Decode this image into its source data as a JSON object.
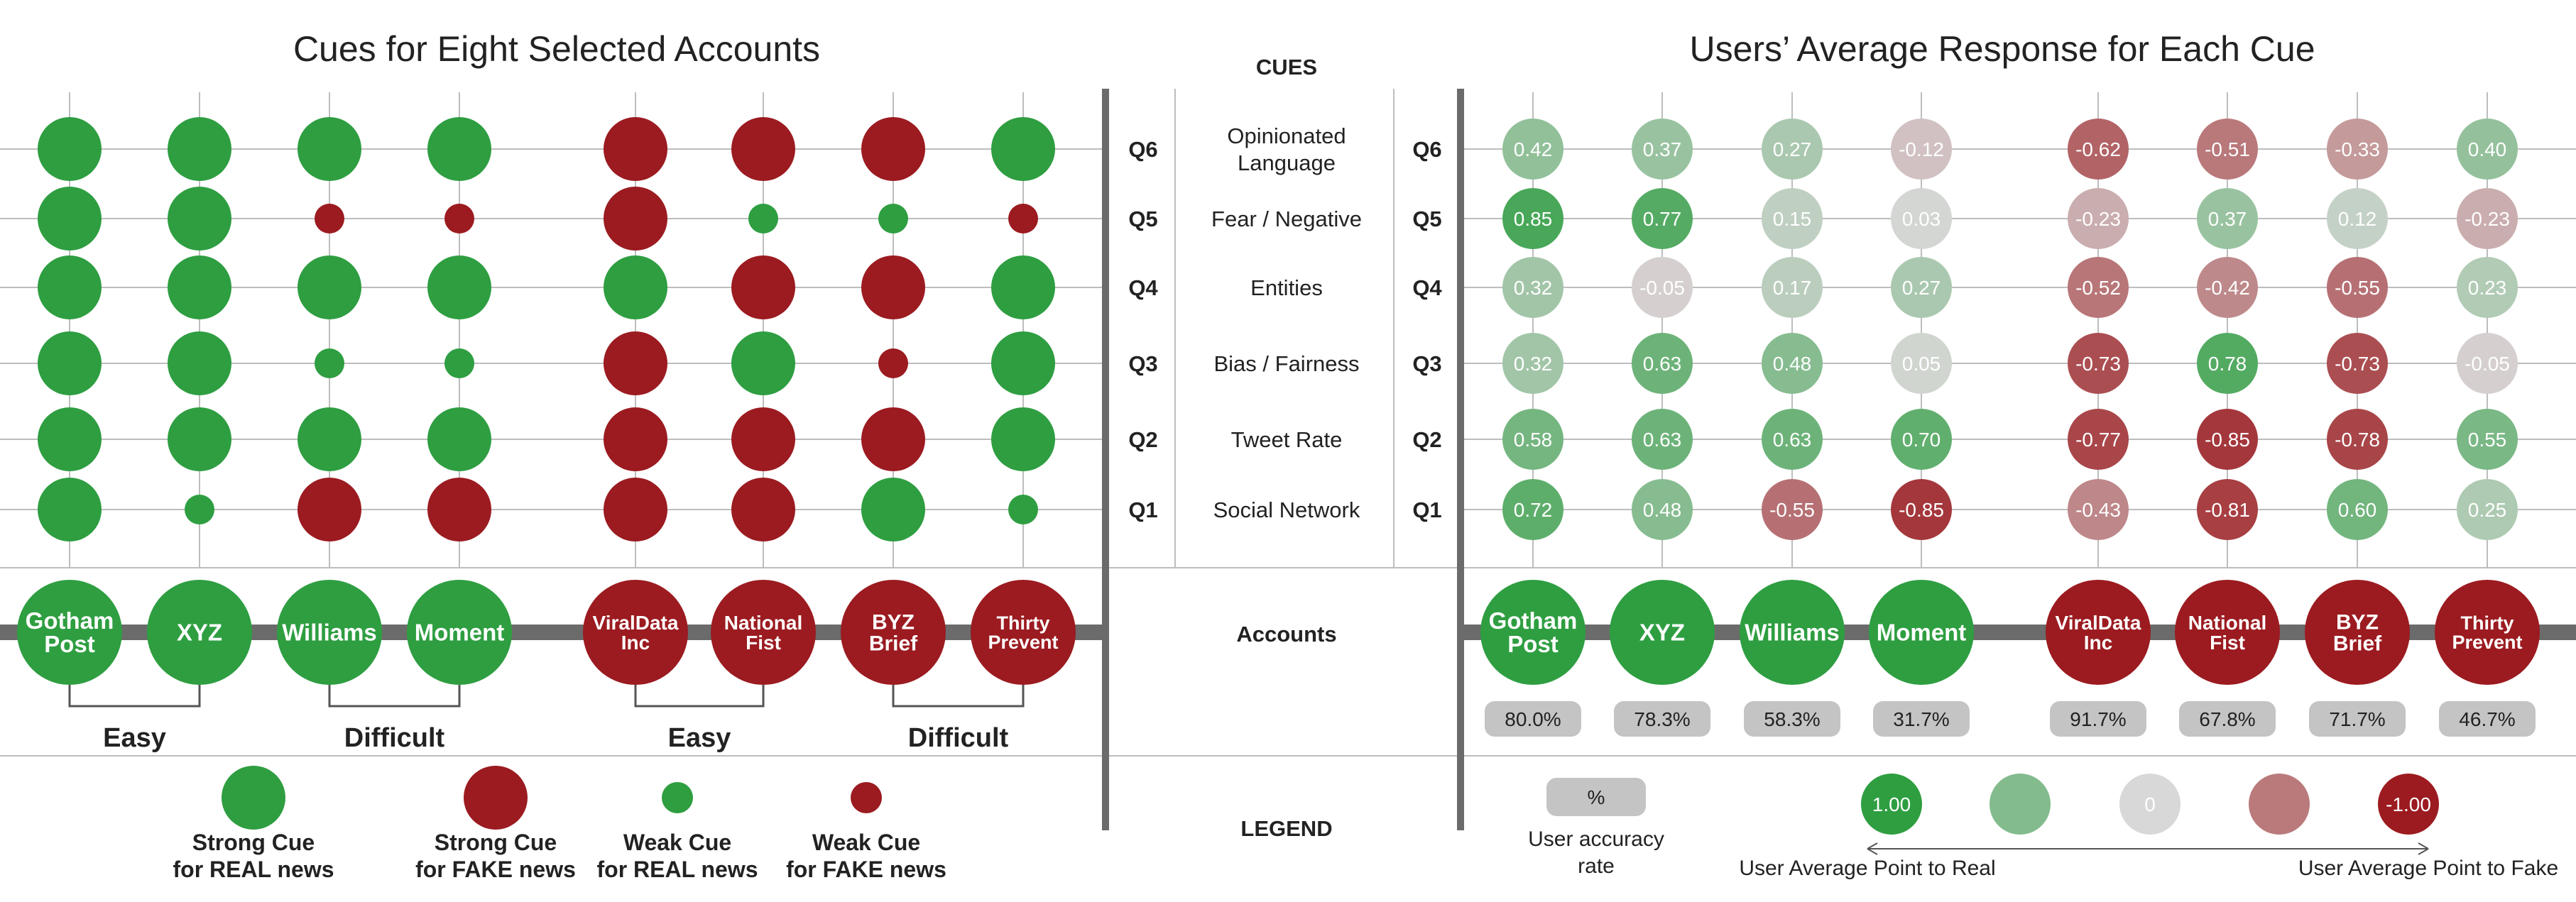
{
  "titles": {
    "left": "Cues for Eight Selected Accounts",
    "right": "Users’ Average Response for Each Cue"
  },
  "headers": {
    "cues": "CUES",
    "accounts": "Accounts",
    "legend": "LEGEND"
  },
  "chart_data": [
    {
      "type": "scatter",
      "title": "Cues for Eight Selected Accounts",
      "rows": [
        "Q6",
        "Q5",
        "Q4",
        "Q3",
        "Q2",
        "Q1"
      ],
      "accounts": [
        {
          "lines": [
            "Gotham",
            "Post"
          ],
          "label": "Gotham Post",
          "type": "real"
        },
        {
          "lines": [
            "XYZ"
          ],
          "label": "XYZ",
          "type": "real"
        },
        {
          "lines": [
            "Williams"
          ],
          "label": "Williams",
          "type": "real"
        },
        {
          "lines": [
            "Moment"
          ],
          "label": "Moment",
          "type": "real"
        },
        {
          "lines": [
            "ViralData",
            "Inc"
          ],
          "label": "ViralData Inc",
          "type": "fake"
        },
        {
          "lines": [
            "National",
            "Fist"
          ],
          "label": "National Fist",
          "type": "fake"
        },
        {
          "lines": [
            "BYZ",
            "Brief"
          ],
          "label": "BYZ Brief",
          "type": "fake"
        },
        {
          "lines": [
            "Thirty",
            "Prevent"
          ],
          "label": "Thirty Prevent",
          "type": "fake"
        }
      ],
      "cue_values": {
        "Q6": [
          "strong_real",
          "strong_real",
          "strong_real",
          "strong_real",
          "strong_fake",
          "strong_fake",
          "strong_fake",
          "strong_real"
        ],
        "Q5": [
          "strong_real",
          "strong_real",
          "weak_fake",
          "weak_fake",
          "strong_fake",
          "weak_real",
          "weak_real",
          "weak_fake"
        ],
        "Q4": [
          "strong_real",
          "strong_real",
          "strong_real",
          "strong_real",
          "strong_real",
          "strong_fake",
          "strong_fake",
          "strong_real"
        ],
        "Q3": [
          "strong_real",
          "strong_real",
          "weak_real",
          "weak_real",
          "strong_fake",
          "strong_real",
          "weak_fake",
          "strong_real"
        ],
        "Q2": [
          "strong_real",
          "strong_real",
          "strong_real",
          "strong_real",
          "strong_fake",
          "strong_fake",
          "strong_fake",
          "strong_real"
        ],
        "Q1": [
          "strong_real",
          "weak_real",
          "strong_fake",
          "strong_fake",
          "strong_fake",
          "strong_fake",
          "strong_real",
          "weak_real"
        ]
      },
      "groups": [
        {
          "label": "Easy",
          "accounts": [
            0,
            1
          ]
        },
        {
          "label": "Difficult",
          "accounts": [
            2,
            3
          ]
        },
        {
          "label": "Easy",
          "accounts": [
            4,
            5
          ]
        },
        {
          "label": "Difficult",
          "accounts": [
            6,
            7
          ]
        }
      ]
    },
    {
      "type": "heatmap",
      "title": "Users’ Average Response for Each Cue",
      "rows": [
        "Q6",
        "Q5",
        "Q4",
        "Q3",
        "Q2",
        "Q1"
      ],
      "columns": [
        "Gotham Post",
        "XYZ",
        "Williams",
        "Moment",
        "ViralData Inc",
        "National Fist",
        "BYZ Brief",
        "Thirty Prevent"
      ],
      "values": {
        "Q6": [
          "0.42",
          "0.37",
          "0.27",
          "-0.12",
          "-0.62",
          "-0.51",
          "-0.33",
          "0.40"
        ],
        "Q5": [
          "0.85",
          "0.77",
          "0.15",
          "0.03",
          "-0.23",
          "0.37",
          "0.12",
          "-0.23"
        ],
        "Q4": [
          "0.32",
          "-0.05",
          "0.17",
          "0.27",
          "-0.52",
          "-0.42",
          "-0.55",
          "0.23"
        ],
        "Q3": [
          "0.32",
          "0.63",
          "0.48",
          "0.05",
          "-0.73",
          "0.78",
          "-0.73",
          "-0.05"
        ],
        "Q2": [
          "0.58",
          "0.63",
          "0.63",
          "0.70",
          "-0.77",
          "-0.85",
          "-0.78",
          "0.55"
        ],
        "Q1": [
          "0.72",
          "0.48",
          "-0.55",
          "-0.85",
          "-0.43",
          "-0.81",
          "0.60",
          "0.25"
        ]
      },
      "accuracy": [
        "80.0%",
        "78.3%",
        "58.3%",
        "31.7%",
        "91.7%",
        "67.8%",
        "71.7%",
        "46.7%"
      ],
      "range": [
        -1,
        1
      ]
    }
  ],
  "cue_names": [
    {
      "q": "Q6",
      "lines": [
        "Opinionated",
        "Language"
      ]
    },
    {
      "q": "Q5",
      "lines": [
        "Fear / Negative"
      ]
    },
    {
      "q": "Q4",
      "lines": [
        "Entities"
      ]
    },
    {
      "q": "Q3",
      "lines": [
        "Bias / Fairness"
      ]
    },
    {
      "q": "Q2",
      "lines": [
        "Tweet Rate"
      ]
    },
    {
      "q": "Q1",
      "lines": [
        "Social Network"
      ]
    }
  ],
  "legend_left": [
    {
      "kind": "strong_real",
      "lines": [
        "Strong Cue",
        "for REAL news"
      ]
    },
    {
      "kind": "strong_fake",
      "lines": [
        "Strong Cue",
        "for FAKE news"
      ]
    },
    {
      "kind": "weak_real",
      "lines": [
        "Weak Cue",
        "for REAL news"
      ]
    },
    {
      "kind": "weak_fake",
      "lines": [
        "Weak Cue",
        "for FAKE news"
      ]
    }
  ],
  "legend_right": {
    "pct_symbol": "%",
    "pct_lines": [
      "User accuracy",
      "rate"
    ],
    "scale_labels": [
      "1.00",
      "",
      "0",
      "",
      "-1.00"
    ],
    "scale_values": [
      1,
      0.5,
      0,
      -0.5,
      -1
    ],
    "arrow_left": "User Average Point to Real",
    "arrow_right": "User Average Point to Fake"
  },
  "colors": {
    "real": "#2e9e41",
    "fake": "#9b1b20",
    "neutral": "#d8d8d8",
    "divider": "#6b6b6b",
    "grid": "#bdbdbd",
    "pill": "#c4c4c4"
  }
}
